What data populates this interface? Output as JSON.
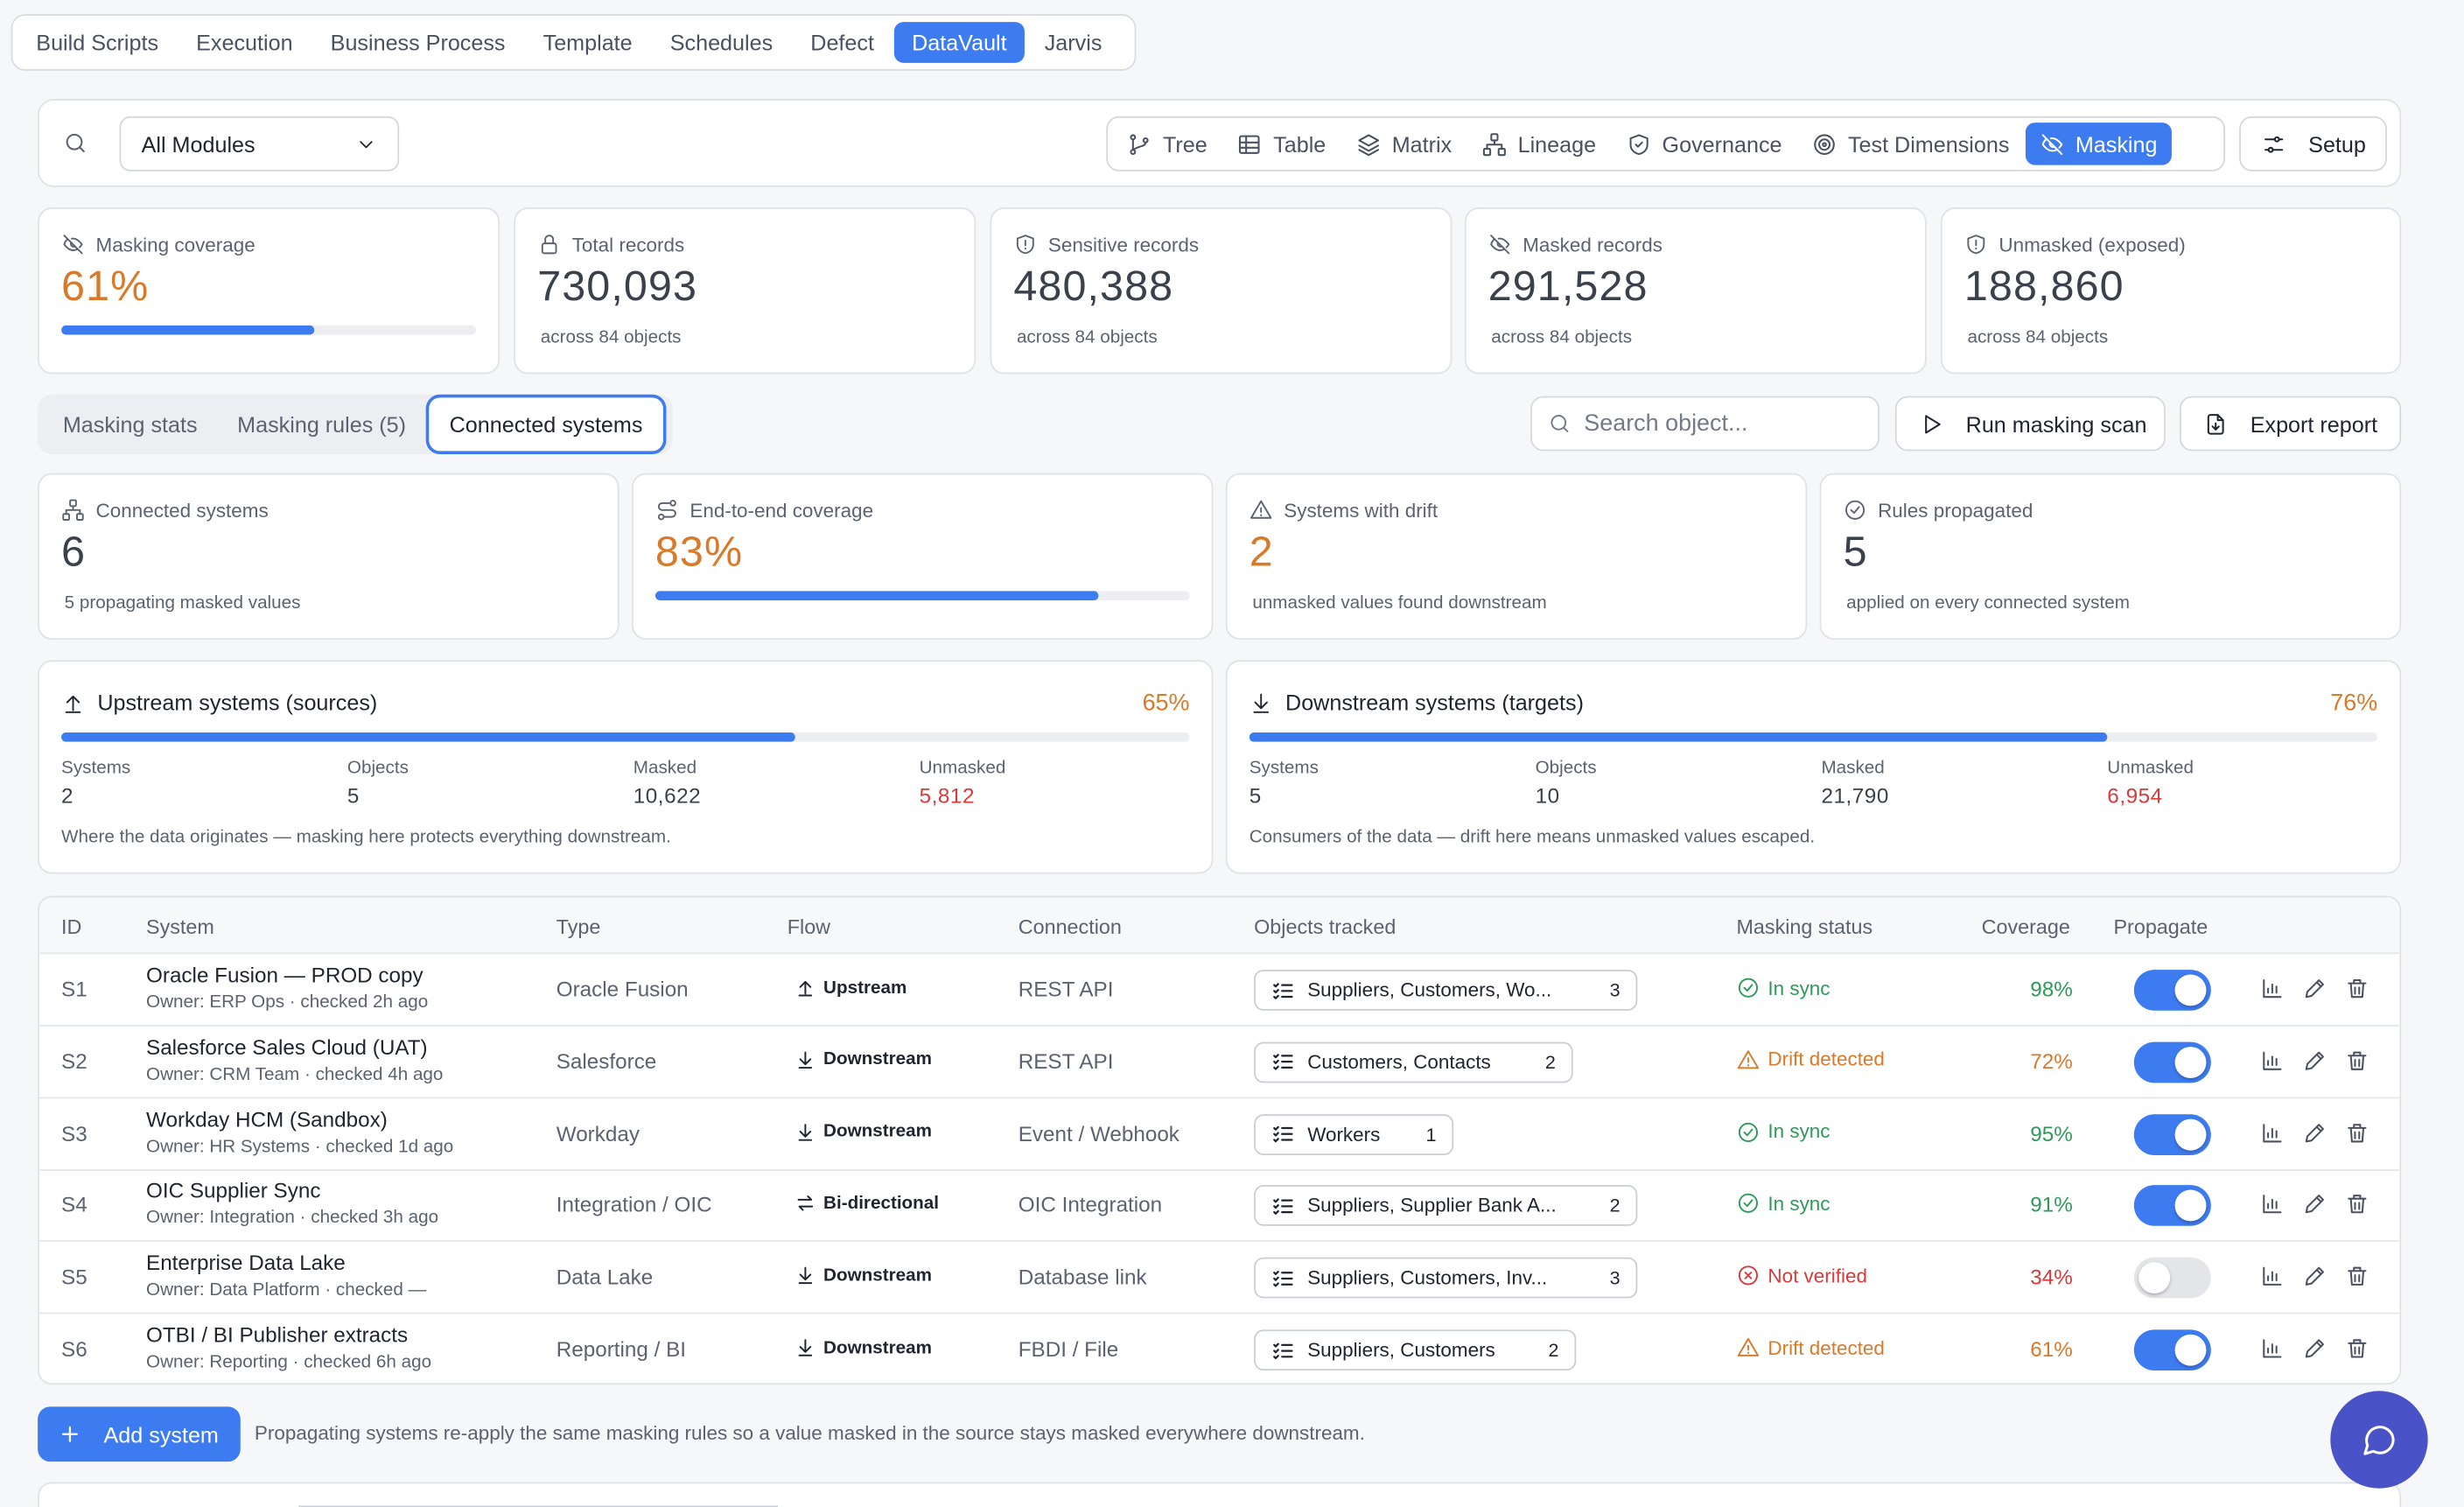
{
  "topnav": [
    "Build Scripts",
    "Execution",
    "Business Process",
    "Template",
    "Schedules",
    "Defect",
    "DataVault",
    "Jarvis"
  ],
  "topnav_active": "DataVault",
  "toolbar": {
    "module_select": "All Modules",
    "views": [
      {
        "label": "Tree",
        "icon": "tree-icon"
      },
      {
        "label": "Table",
        "icon": "table-icon"
      },
      {
        "label": "Matrix",
        "icon": "layers-icon"
      },
      {
        "label": "Lineage",
        "icon": "lineage-icon"
      },
      {
        "label": "Governance",
        "icon": "shield-icon"
      },
      {
        "label": "Test Dimensions",
        "icon": "target-icon"
      },
      {
        "label": "Masking",
        "icon": "eye-off-icon"
      }
    ],
    "active_view": "Masking",
    "setup_label": "Setup"
  },
  "stats": [
    {
      "label": "Masking coverage",
      "value": "61%",
      "progress": 0.61
    },
    {
      "label": "Total records",
      "value": "730,093",
      "sub": "across 84 objects"
    },
    {
      "label": "Sensitive records",
      "value": "480,388",
      "sub": "across 84 objects"
    },
    {
      "label": "Masked records",
      "value": "291,528",
      "sub": "across 84 objects"
    },
    {
      "label": "Unmasked (exposed)",
      "value": "188,860",
      "sub": "across 84 objects"
    }
  ],
  "subtabs": [
    "Masking stats",
    "Masking rules (5)",
    "Connected systems"
  ],
  "active_subtab": "Connected systems",
  "search_placeholder": "Search object...",
  "run_scan_label": "Run masking scan",
  "export_label": "Export report",
  "sys_stats": [
    {
      "label": "Connected systems",
      "value": "6",
      "sub": "5 propagating masked values"
    },
    {
      "label": "End-to-end coverage",
      "value": "83%",
      "progress": 0.83
    },
    {
      "label": "Systems with drift",
      "value": "2",
      "sub": "unmasked values found downstream"
    },
    {
      "label": "Rules propagated",
      "value": "5",
      "sub": "applied on every connected system"
    }
  ],
  "upstream": {
    "title": "Upstream systems (sources)",
    "pct": "65%",
    "progress": 0.65,
    "cols": [
      {
        "k": "Systems",
        "v": "2"
      },
      {
        "k": "Objects",
        "v": "5"
      },
      {
        "k": "Masked",
        "v": "10,622"
      },
      {
        "k": "Unmasked",
        "v": "5,812"
      }
    ],
    "note": "Where the data originates — masking here protects everything downstream."
  },
  "downstream": {
    "title": "Downstream systems (targets)",
    "pct": "76%",
    "progress": 0.76,
    "cols": [
      {
        "k": "Systems",
        "v": "5"
      },
      {
        "k": "Objects",
        "v": "10"
      },
      {
        "k": "Masked",
        "v": "21,790"
      },
      {
        "k": "Unmasked",
        "v": "6,954"
      }
    ],
    "note": "Consumers of the data — drift here means unmasked values escaped."
  },
  "table": {
    "headers": [
      "ID",
      "System",
      "Type",
      "Flow",
      "Connection",
      "Objects tracked",
      "Masking status",
      "Coverage",
      "Propagate"
    ],
    "rows": [
      {
        "id": "S1",
        "name": "Oracle Fusion — PROD copy",
        "owner": "Owner: ERP Ops · checked 2h ago",
        "type": "Oracle Fusion",
        "flow": "Upstream",
        "conn": "REST API",
        "objects": "Suppliers, Customers, Wo...",
        "count": "3",
        "status": "In sync",
        "coverage": "98%",
        "propagate": true
      },
      {
        "id": "S2",
        "name": "Salesforce Sales Cloud (UAT)",
        "owner": "Owner: CRM Team · checked 4h ago",
        "type": "Salesforce",
        "flow": "Downstream",
        "conn": "REST API",
        "objects": "Customers, Contacts",
        "count": "2",
        "status": "Drift detected",
        "coverage": "72%",
        "propagate": true
      },
      {
        "id": "S3",
        "name": "Workday HCM (Sandbox)",
        "owner": "Owner: HR Systems · checked 1d ago",
        "type": "Workday",
        "flow": "Downstream",
        "conn": "Event / Webhook",
        "objects": "Workers",
        "count": "1",
        "status": "In sync",
        "coverage": "95%",
        "propagate": true
      },
      {
        "id": "S4",
        "name": "OIC Supplier Sync",
        "owner": "Owner: Integration · checked 3h ago",
        "type": "Integration / OIC",
        "flow": "Bi-directional",
        "conn": "OIC Integration",
        "objects": "Suppliers, Supplier Bank A...",
        "count": "2",
        "status": "In sync",
        "coverage": "91%",
        "propagate": true
      },
      {
        "id": "S5",
        "name": "Enterprise Data Lake",
        "owner": "Owner: Data Platform · checked —",
        "type": "Data Lake",
        "flow": "Downstream",
        "conn": "Database link",
        "objects": "Suppliers, Customers, Inv...",
        "count": "3",
        "status": "Not verified",
        "coverage": "34%",
        "propagate": false
      },
      {
        "id": "S6",
        "name": "OTBI / BI Publisher extracts",
        "owner": "Owner: Reporting · checked 6h ago",
        "type": "Reporting / BI",
        "flow": "Downstream",
        "conn": "FBDI / File",
        "objects": "Suppliers, Customers",
        "count": "2",
        "status": "Drift detected",
        "coverage": "61%",
        "propagate": true
      }
    ]
  },
  "add_system_label": "Add system",
  "footer_note": "Propagating systems re-apply the same masking rules so a value masked in the source stays masked everywhere downstream.",
  "colors": {
    "accent": "#3d7bf0",
    "warning": "#d9792a",
    "success": "#2e9a57",
    "danger": "#d63a3a",
    "chat": "#4a52c8"
  }
}
